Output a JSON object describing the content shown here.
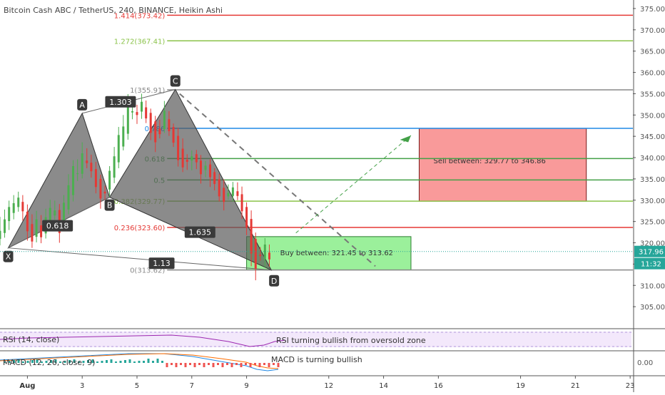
{
  "chart_data": {
    "type": "candlestick",
    "title": "Bitcoin Cash ABC / TetherUS, 240, BINANCE, Heikin Ashi",
    "ylim": [
      300,
      377
    ],
    "y_ticks": [
      "375.00",
      "370.00",
      "365.00",
      "360.00",
      "355.00",
      "350.00",
      "345.00",
      "340.00",
      "335.00",
      "330.00",
      "325.00",
      "320.00",
      "315.00",
      "310.00",
      "305.00"
    ],
    "x_ticks": [
      {
        "label": "Aug",
        "day": 1
      },
      {
        "label": "3",
        "day": 3
      },
      {
        "label": "5",
        "day": 5
      },
      {
        "label": "7",
        "day": 7
      },
      {
        "label": "9",
        "day": 9
      },
      {
        "label": "12",
        "day": 12
      },
      {
        "label": "14",
        "day": 14
      },
      {
        "label": "16",
        "day": 16
      },
      {
        "label": "19",
        "day": 19
      },
      {
        "label": "21",
        "day": 21
      },
      {
        "label": "23",
        "day": 23
      }
    ],
    "xlim": [
      0.0,
      23.1
    ],
    "current_price": "317.96",
    "countdown": "11:32",
    "fib_levels": [
      {
        "label": "1.414(373.42)",
        "value": 373.42,
        "color": "#e53935"
      },
      {
        "label": "1.272(367.41)",
        "value": 367.41,
        "color": "#8bc34a"
      },
      {
        "label": "1(355.91)",
        "value": 355.91,
        "color": "#888888"
      },
      {
        "label": "0.786",
        "value": 346.86,
        "color": "#1e88e5"
      },
      {
        "label": "0.618",
        "value": 339.77,
        "color": "#43a047"
      },
      {
        "label": "0.5",
        "value": 334.76,
        "color": "#43a047"
      },
      {
        "label": "0.382(329.77)",
        "value": 329.77,
        "color": "#8bc34a"
      },
      {
        "label": "0.236(323.60)",
        "value": 323.6,
        "color": "#e53935"
      },
      {
        "label": "0(313.62)",
        "value": 313.62,
        "color": "#888888"
      }
    ],
    "pattern_points": [
      {
        "label": "X",
        "day": 0.3,
        "price": 318.8
      },
      {
        "label": "A",
        "day": 3.0,
        "price": 350.4
      },
      {
        "label": "B",
        "day": 4.0,
        "price": 330.7
      },
      {
        "label": "C",
        "day": 6.4,
        "price": 356.0
      },
      {
        "label": "D",
        "day": 9.9,
        "price": 313.6
      }
    ],
    "ratio_labels": [
      {
        "text": "0.618",
        "day": 2.1,
        "price": 324.0
      },
      {
        "text": "1.303",
        "day": 4.4,
        "price": 353.1
      },
      {
        "text": "1.635",
        "day": 7.3,
        "price": 322.5
      },
      {
        "text": "1.13",
        "day": 5.9,
        "price": 315.2
      }
    ],
    "sell_zone": {
      "text": "Sell between: 329.77 to 346.86",
      "from": 329.77,
      "to": 346.86,
      "day_start": 15.3,
      "day_end": 21.4
    },
    "buy_zone": {
      "text": "Buy between: 321.45 to 313.62",
      "from": 313.62,
      "to": 321.45,
      "day_start": 9.0,
      "day_end": 15.0
    },
    "candles": [
      [
        0.0,
        320.9,
        322.8,
        326.1,
        319.4
      ],
      [
        0.17,
        322.3,
        325.5,
        327.8,
        321.2
      ],
      [
        0.33,
        325.1,
        328.4,
        329.9,
        323.0
      ],
      [
        0.5,
        327.0,
        329.3,
        331.2,
        325.5
      ],
      [
        0.67,
        328.4,
        330.6,
        332.0,
        327.3
      ],
      [
        0.83,
        329.6,
        327.4,
        331.2,
        325.2
      ],
      [
        1.0,
        327.3,
        322.7,
        329.0,
        320.5
      ],
      [
        1.17,
        324.4,
        320.3,
        326.7,
        318.8
      ],
      [
        1.33,
        321.4,
        325.5,
        327.5,
        320.1
      ],
      [
        1.5,
        324.1,
        321.3,
        326.5,
        319.9
      ],
      [
        1.67,
        322.2,
        326.0,
        328.0,
        321.0
      ],
      [
        1.83,
        324.8,
        328.2,
        330.1,
        323.4
      ],
      [
        2.0,
        326.4,
        327.6,
        329.9,
        325.4
      ],
      [
        2.17,
        327.7,
        322.3,
        329.1,
        320.0
      ],
      [
        2.33,
        324.7,
        329.4,
        331.2,
        323.6
      ],
      [
        2.5,
        327.8,
        333.5,
        336.1,
        326.7
      ],
      [
        2.67,
        331.2,
        338.0,
        339.4,
        329.7
      ],
      [
        2.83,
        336.3,
        336.3,
        339.6,
        334.5
      ],
      [
        3.0,
        336.2,
        341.0,
        343.6,
        335.1
      ],
      [
        3.17,
        339.3,
        338.7,
        342.2,
        337.5
      ],
      [
        3.33,
        338.8,
        336.8,
        340.7,
        335.3
      ],
      [
        3.5,
        337.3,
        333.1,
        339.0,
        331.6
      ],
      [
        3.67,
        335.0,
        330.4,
        336.0,
        328.0
      ],
      [
        3.83,
        332.0,
        331.6,
        333.4,
        330.1
      ],
      [
        4.0,
        332.5,
        336.9,
        338.0,
        330.8
      ],
      [
        4.17,
        335.3,
        340.3,
        342.5,
        334.0
      ],
      [
        4.33,
        338.9,
        345.3,
        347.2,
        337.5
      ],
      [
        4.5,
        342.6,
        347.3,
        350.0,
        341.7
      ],
      [
        4.67,
        345.6,
        352.4,
        354.9,
        344.2
      ],
      [
        4.83,
        350.6,
        350.9,
        352.9,
        349.0
      ],
      [
        5.0,
        350.7,
        350.0,
        352.4,
        347.9
      ],
      [
        5.17,
        350.8,
        353.1,
        355.0,
        349.1
      ],
      [
        5.33,
        351.8,
        349.2,
        353.4,
        348.1
      ],
      [
        5.5,
        350.5,
        345.8,
        351.5,
        344.1
      ],
      [
        5.67,
        348.5,
        343.6,
        349.8,
        341.3
      ],
      [
        5.83,
        346.8,
        345.5,
        348.9,
        344.5
      ],
      [
        6.0,
        346.7,
        351.0,
        353.3,
        345.8
      ],
      [
        6.17,
        349.0,
        346.2,
        350.9,
        345.1
      ],
      [
        6.33,
        347.2,
        343.5,
        348.0,
        342.5
      ],
      [
        6.5,
        345.1,
        339.4,
        347.0,
        337.9
      ],
      [
        6.67,
        342.1,
        337.7,
        344.5,
        336.6
      ],
      [
        6.83,
        339.5,
        339.0,
        340.8,
        337.1
      ],
      [
        7.0,
        339.3,
        340.3,
        341.7,
        337.0
      ],
      [
        7.17,
        340.8,
        338.9,
        341.8,
        337.3
      ],
      [
        7.33,
        339.3,
        336.1,
        340.6,
        333.9
      ],
      [
        7.5,
        337.1,
        338.1,
        339.2,
        335.4
      ],
      [
        7.67,
        338.4,
        335.4,
        339.6,
        333.1
      ],
      [
        7.83,
        336.6,
        333.8,
        337.5,
        332.3
      ],
      [
        8.0,
        334.9,
        330.9,
        336.2,
        329.7
      ],
      [
        8.17,
        332.9,
        329.6,
        334.9,
        327.6
      ],
      [
        8.33,
        330.9,
        331.7,
        333.7,
        330.1
      ],
      [
        8.5,
        331.0,
        333.0,
        334.3,
        329.7
      ],
      [
        8.67,
        332.1,
        331.0,
        334.2,
        330.0
      ],
      [
        8.83,
        331.4,
        327.4,
        333.2,
        325.6
      ],
      [
        9.0,
        328.4,
        323.6,
        329.5,
        321.8
      ],
      [
        9.17,
        325.6,
        317.5,
        327.6,
        314.5
      ],
      [
        9.33,
        320.9,
        313.9,
        322.4,
        311.2
      ],
      [
        9.5,
        317.2,
        316.9,
        319.0,
        315.8
      ],
      [
        9.67,
        316.1,
        319.6,
        321.1,
        314.3
      ],
      [
        9.83,
        317.7,
        316.1,
        319.6,
        314.4
      ]
    ]
  },
  "ui": {
    "rsi_label": "RSI (14, close)",
    "rsi_note": "RSI turning bullish from oversold zone",
    "macd_label": "MACD (12, 26, close, 9)",
    "macd_note": "MACD is turning bullish",
    "macd_axis_value": "0.00"
  }
}
